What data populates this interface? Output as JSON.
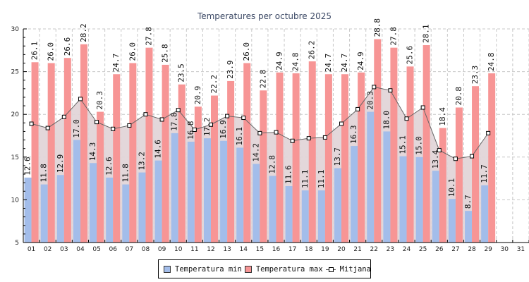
{
  "chart_data": {
    "type": "bar",
    "title": "Temperatures per octubre 2025",
    "xlabel": "",
    "ylabel": "",
    "ylim": [
      5,
      30
    ],
    "yticks": [
      5,
      10,
      15,
      20,
      25,
      30
    ],
    "grid": true,
    "legend_position": "bottom-center",
    "categories": [
      "01",
      "02",
      "03",
      "04",
      "05",
      "06",
      "07",
      "08",
      "09",
      "10",
      "11",
      "12",
      "13",
      "14",
      "15",
      "16",
      "17",
      "18",
      "19",
      "20",
      "21",
      "22",
      "23",
      "24",
      "25",
      "26",
      "27",
      "28",
      "29",
      "30",
      "31"
    ],
    "series": [
      {
        "name": "Temperatura min",
        "kind": "bar",
        "color": "#a3bdea",
        "values": [
          12.6,
          11.8,
          12.9,
          17.0,
          14.3,
          12.6,
          11.8,
          13.2,
          14.6,
          17.8,
          16.8,
          17.2,
          16.9,
          16.1,
          14.2,
          12.8,
          11.6,
          11.1,
          11.1,
          13.7,
          16.3,
          20.3,
          18.0,
          15.1,
          15.0,
          13.4,
          10.1,
          8.7,
          11.7,
          null,
          null
        ],
        "labels": [
          "12.6",
          "11.8",
          "12.9",
          "17.0",
          "14.3",
          "12.6",
          "11.8",
          "13.2",
          "14.6",
          "17.8",
          "16.8",
          "17.2",
          "16.9",
          "16.1",
          "14.2",
          "12.8",
          "11.6",
          "11.1",
          "11.1",
          "13.7",
          "16.3",
          "20.3",
          "18.0",
          "15.1",
          "15.0",
          "13.4",
          "10.1",
          "8.7",
          "11.7",
          "",
          ""
        ]
      },
      {
        "name": "Temperatura max",
        "kind": "bar",
        "color": "#f79595",
        "values": [
          26.1,
          26.0,
          26.6,
          28.2,
          20.3,
          24.7,
          26.0,
          27.8,
          25.8,
          23.5,
          20.9,
          22.2,
          23.9,
          26.0,
          22.8,
          24.9,
          24.8,
          26.2,
          24.7,
          24.7,
          24.9,
          28.8,
          27.8,
          25.6,
          28.1,
          18.4,
          20.8,
          23.3,
          24.8,
          null,
          null
        ],
        "labels": [
          "26.1",
          "26.0",
          "26.6",
          "28.2",
          "20.3",
          "24.7",
          "26.0",
          "27.8",
          "25.8",
          "23.5",
          "20.9",
          "22.2",
          "23.9",
          "26.0",
          "22.8",
          "24.9",
          "24.8",
          "26.2",
          "24.7",
          "24.7",
          "24.9",
          "28.8",
          "27.8",
          "25.6",
          "28.1",
          "18.4",
          "20.8",
          "23.3",
          "24.8",
          "",
          ""
        ]
      },
      {
        "name": "Mitjana",
        "kind": "line-area",
        "color": "#666666",
        "fill": "#d8d8dc",
        "values": [
          18.9,
          18.4,
          19.7,
          21.8,
          19.1,
          18.3,
          18.7,
          20.0,
          19.4,
          20.5,
          18.2,
          18.8,
          19.8,
          19.6,
          17.8,
          17.9,
          16.9,
          17.2,
          17.3,
          18.9,
          20.6,
          23.2,
          22.8,
          19.5,
          20.8,
          15.8,
          14.8,
          15.1,
          17.8,
          null,
          null
        ]
      }
    ]
  },
  "legend": {
    "items": [
      {
        "label": "Temperatura min"
      },
      {
        "label": "Temperatura max"
      },
      {
        "label": "Mitjana"
      }
    ]
  }
}
